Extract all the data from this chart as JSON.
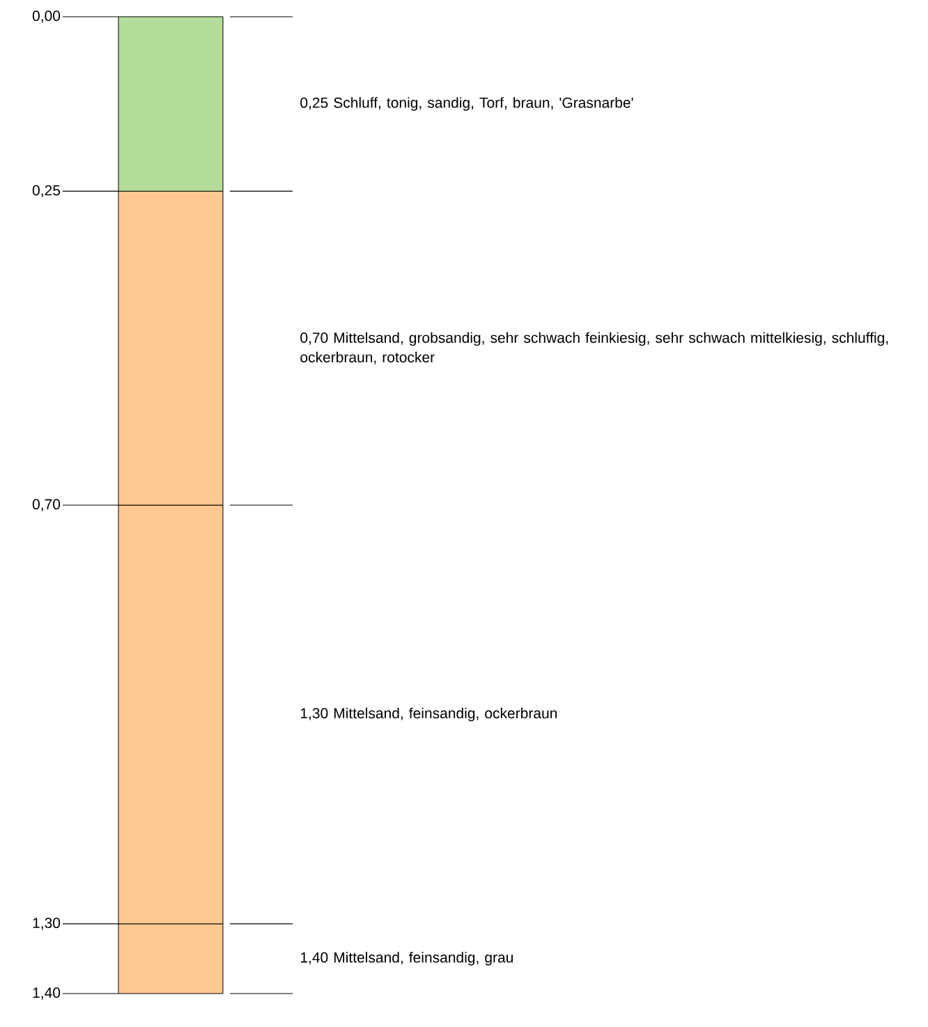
{
  "chart_data": {
    "type": "bar",
    "stacked": true,
    "categories": [
      null
    ],
    "tick_labels": "y",
    "series": [
      {
        "color": "#b5dd9a",
        "values": [
          0.25
        ]
      },
      {
        "color": "#ffc891",
        "values": [
          0.45
        ]
      },
      {
        "color": "#ffc891",
        "values": [
          0.6
        ]
      },
      {
        "color": "#ffc891",
        "values": [
          0.1
        ]
      }
    ],
    "ylim": [
      1.4,
      0
    ],
    "yticks": [
      {
        "value": 0,
        "label": "0,00"
      },
      {
        "value": 0.25,
        "label": "0,25"
      },
      {
        "value": 0.7,
        "label": "0,70"
      },
      {
        "value": 1.3,
        "label": "1,30"
      },
      {
        "value": 1.4,
        "label": "1,40"
      }
    ],
    "annotations": [
      "0,25  Schluff, tonig, sandig, Torf, braun, 'Grasnarbe'",
      "0,70  Mittelsand, grobsandig, sehr schwach feinkiesig, sehr schwach mittelkiesig, schluffig, ockerbraun, rotocker",
      "1,30  Mittelsand, feinsandig, ockerbraun",
      "1,40  Mittelsand, feinsandig, grau"
    ]
  }
}
